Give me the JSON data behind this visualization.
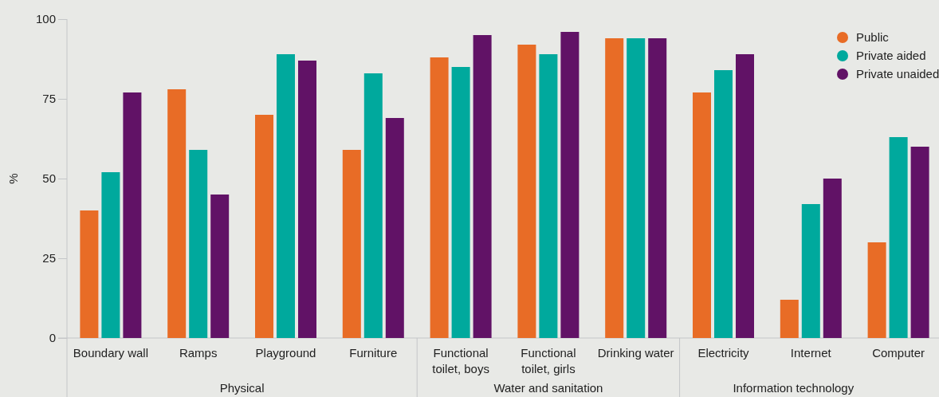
{
  "chart_data": {
    "type": "bar",
    "ylabel": "%",
    "categories": [
      "Boundary wall",
      "Ramps",
      "Playground",
      "Furniture",
      "Functional toilet, boys",
      "Functional toilet, girls",
      "Drinking water",
      "Electricity",
      "Internet",
      "Computer"
    ],
    "series": [
      {
        "name": "Public",
        "color": "#e86c26",
        "values": [
          40,
          78,
          70,
          59,
          88,
          92,
          94,
          77,
          12,
          30
        ]
      },
      {
        "name": "Private aided",
        "color": "#00a99d",
        "values": [
          52,
          59,
          89,
          83,
          85,
          89,
          94,
          84,
          42,
          63
        ]
      },
      {
        "name": "Private unaided",
        "color": "#611266",
        "values": [
          77,
          45,
          87,
          69,
          95,
          96,
          94,
          89,
          50,
          60
        ]
      }
    ],
    "annotations": [
      "Physical",
      "Water and sanitation",
      "Information technology"
    ],
    "ylim": [
      0,
      100
    ],
    "yticks": [
      0,
      25,
      50,
      75,
      100
    ],
    "grid": false,
    "legend": "top right"
  }
}
